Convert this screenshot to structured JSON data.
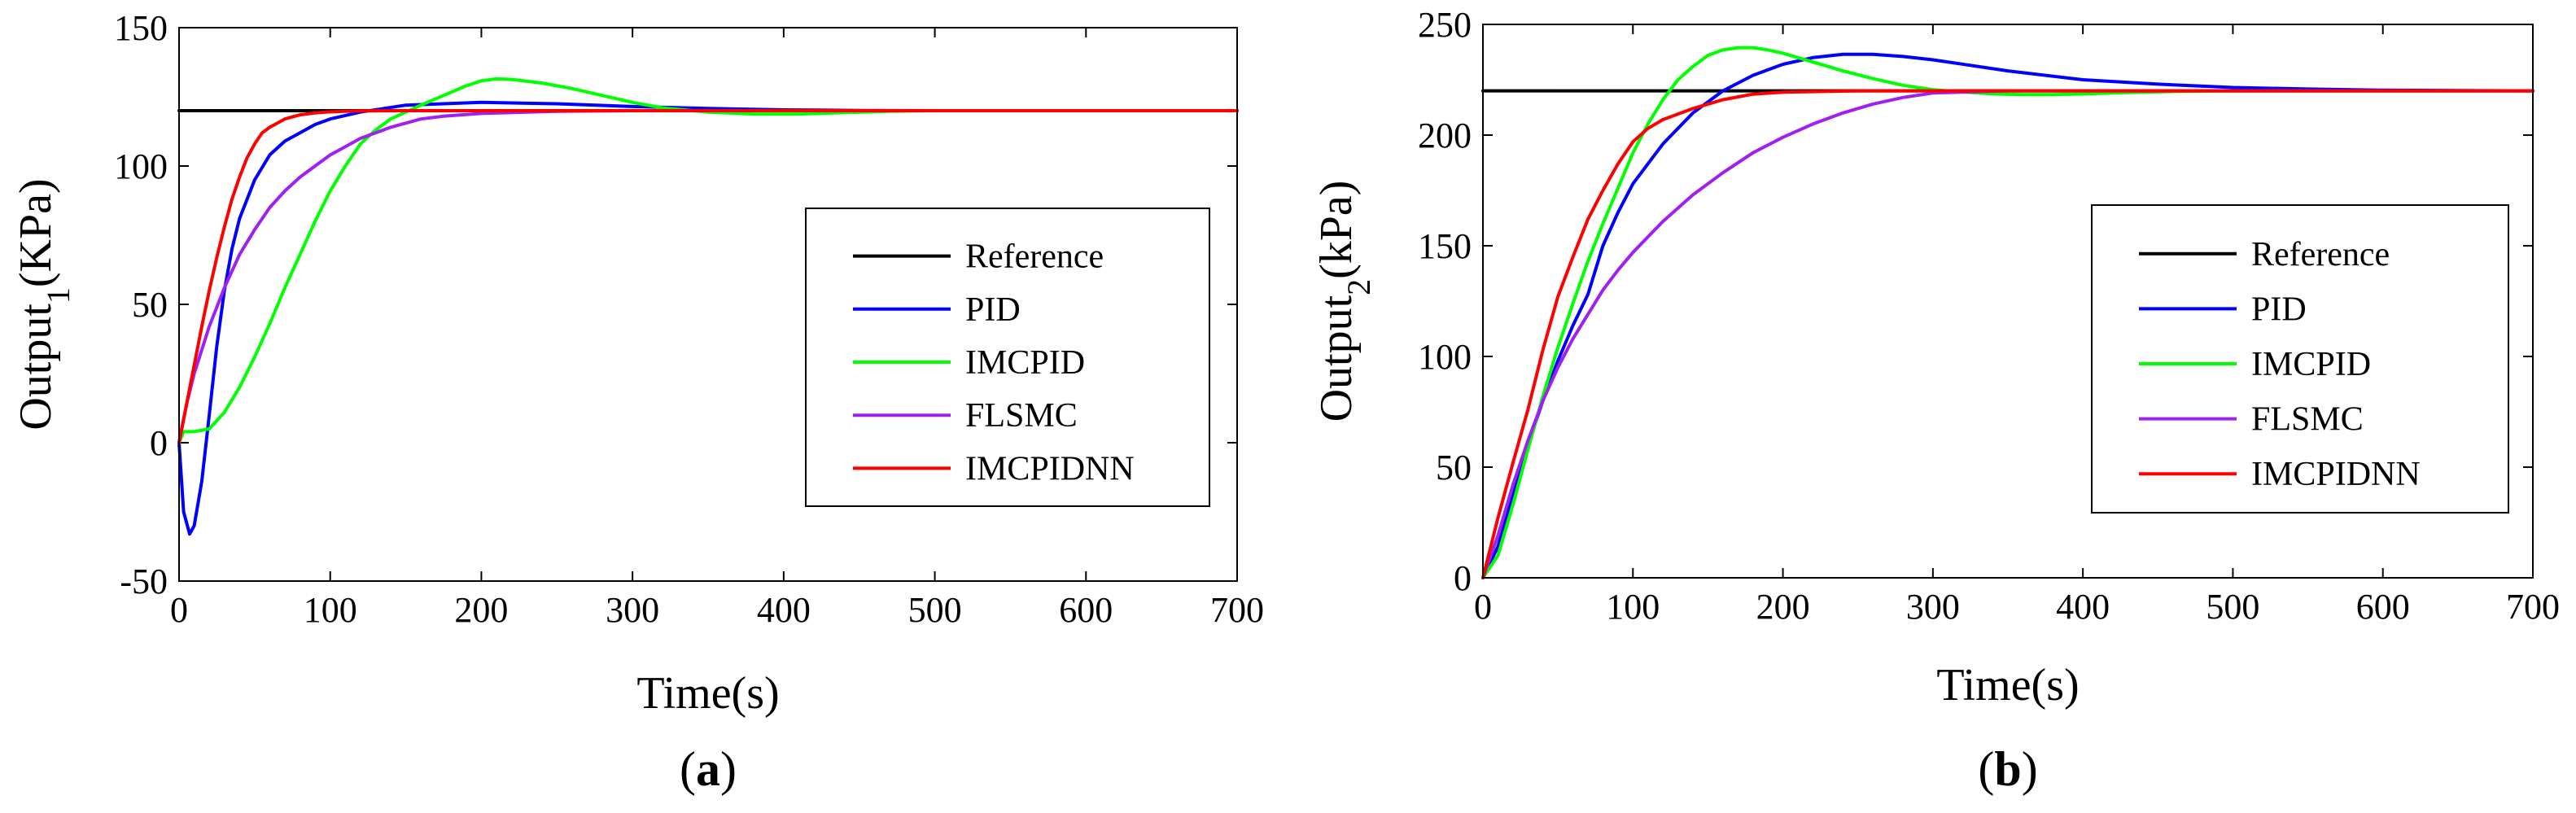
{
  "chart_data": [
    {
      "type": "line",
      "panel_label": "a",
      "caption_open": "(",
      "caption_close": ")",
      "xlabel": "Time(s)",
      "ylabel_main": "Output",
      "ylabel_sub": "1",
      "ylabel_unit": "(KPa)",
      "xlim": [
        0,
        700
      ],
      "ylim": [
        -50,
        150
      ],
      "xticks": [
        0,
        100,
        200,
        300,
        400,
        500,
        600,
        700
      ],
      "yticks": [
        -50,
        0,
        50,
        100,
        150
      ],
      "legend_position": "right",
      "series": [
        {
          "name": "Reference",
          "color": "#000000",
          "x": [
            0,
            700
          ],
          "y": [
            120,
            120
          ]
        },
        {
          "name": "PID",
          "color": "#0000ff",
          "x": [
            0,
            3,
            7,
            10,
            15,
            20,
            25,
            30,
            35,
            40,
            50,
            60,
            70,
            80,
            90,
            100,
            120,
            150,
            200,
            250,
            300,
            350,
            400,
            450,
            500,
            600,
            700
          ],
          "y": [
            0,
            -25,
            -33,
            -30,
            -14,
            10,
            35,
            55,
            70,
            81,
            95,
            104,
            109,
            112,
            115,
            117,
            119.5,
            122,
            123,
            122.5,
            121.5,
            120.8,
            120.3,
            120.1,
            120,
            120,
            120
          ]
        },
        {
          "name": "IMCPID",
          "color": "#00ff00",
          "x": [
            0,
            3,
            10,
            20,
            30,
            40,
            50,
            60,
            70,
            80,
            90,
            100,
            110,
            120,
            130,
            140,
            150,
            160,
            175,
            190,
            200,
            210,
            220,
            240,
            260,
            280,
            300,
            320,
            350,
            380,
            410,
            440,
            470,
            500,
            550,
            600,
            700
          ],
          "y": [
            0,
            4,
            4,
            5,
            11,
            20,
            31,
            43,
            56,
            68,
            80,
            91,
            100,
            108,
            113,
            117,
            119.5,
            122,
            125.5,
            129,
            130.8,
            131.5,
            131.3,
            130,
            128,
            125.5,
            123,
            121,
            119.5,
            118.8,
            118.8,
            119.3,
            119.8,
            120,
            120,
            120,
            120
          ]
        },
        {
          "name": "FLSMC",
          "color": "#a020f0",
          "x": [
            0,
            5,
            10,
            20,
            30,
            40,
            50,
            60,
            70,
            80,
            90,
            100,
            110,
            120,
            130,
            140,
            150,
            160,
            175,
            200,
            250,
            300,
            400,
            700
          ],
          "y": [
            0,
            14,
            25,
            42,
            56,
            68,
            77,
            85,
            91,
            96,
            100,
            104,
            107,
            110,
            112,
            114,
            115.5,
            117,
            118,
            119,
            119.8,
            120,
            120,
            120
          ]
        },
        {
          "name": "IMCPIDNN",
          "color": "#ff0000",
          "x": [
            0,
            5,
            10,
            15,
            20,
            25,
            30,
            35,
            40,
            45,
            50,
            55,
            60,
            70,
            80,
            90,
            100,
            110,
            120,
            150,
            700
          ],
          "y": [
            0,
            14,
            28,
            42,
            55,
            67,
            78,
            88,
            96,
            103,
            108,
            112,
            114,
            117,
            118.5,
            119.2,
            119.6,
            119.8,
            119.9,
            120,
            120
          ]
        }
      ]
    },
    {
      "type": "line",
      "panel_label": "b",
      "caption_open": "(",
      "caption_close": ")",
      "xlabel": "Time(s)",
      "ylabel_main": "Output",
      "ylabel_sub": "2",
      "ylabel_unit": "(kPa)",
      "xlim": [
        0,
        700
      ],
      "ylim": [
        0,
        250
      ],
      "xticks": [
        0,
        100,
        200,
        300,
        400,
        500,
        600,
        700
      ],
      "yticks": [
        0,
        50,
        100,
        150,
        200,
        250
      ],
      "legend_position": "right",
      "series": [
        {
          "name": "Reference",
          "color": "#000000",
          "x": [
            0,
            700
          ],
          "y": [
            220,
            220
          ]
        },
        {
          "name": "PID",
          "color": "#0000ff",
          "x": [
            0,
            10,
            20,
            30,
            40,
            50,
            60,
            70,
            80,
            90,
            100,
            120,
            140,
            160,
            180,
            200,
            220,
            240,
            260,
            280,
            300,
            350,
            400,
            450,
            500,
            550,
            600,
            650,
            700
          ],
          "y": [
            0,
            14,
            37,
            60,
            80,
            98,
            114,
            128,
            150,
            165,
            178,
            196,
            210,
            220,
            227,
            232,
            235,
            236.5,
            236.5,
            235.5,
            234,
            229,
            225,
            223,
            221.5,
            220.8,
            220.3,
            220.1,
            220
          ]
        },
        {
          "name": "IMCPID",
          "color": "#00ff00",
          "x": [
            0,
            10,
            20,
            30,
            40,
            50,
            60,
            70,
            80,
            90,
            100,
            110,
            120,
            130,
            140,
            150,
            160,
            170,
            180,
            190,
            200,
            220,
            240,
            260,
            280,
            300,
            320,
            340,
            360,
            380,
            400,
            430,
            460,
            500,
            550,
            600,
            700
          ],
          "y": [
            0,
            10,
            33,
            58,
            82,
            104,
            124,
            143,
            160,
            176,
            192,
            205,
            216,
            225,
            231,
            236,
            238.5,
            239.5,
            239.5,
            238.5,
            237,
            233,
            229,
            225.5,
            222.5,
            220.5,
            219.5,
            218.6,
            218.3,
            218.3,
            218.6,
            219.2,
            219.7,
            220,
            220,
            220,
            220
          ]
        },
        {
          "name": "FLSMC",
          "color": "#a020f0",
          "x": [
            0,
            10,
            20,
            30,
            40,
            50,
            60,
            70,
            80,
            90,
            100,
            120,
            140,
            160,
            180,
            200,
            220,
            240,
            260,
            280,
            300,
            350,
            400,
            700
          ],
          "y": [
            0,
            19,
            42,
            62,
            80,
            95,
            108,
            119,
            130,
            139,
            147,
            161,
            173,
            183,
            192,
            199,
            205,
            210,
            214,
            217,
            219,
            220,
            220,
            220
          ]
        },
        {
          "name": "IMCPIDNN",
          "color": "#ff0000",
          "x": [
            0,
            10,
            20,
            30,
            40,
            50,
            60,
            70,
            80,
            90,
            100,
            110,
            120,
            140,
            160,
            180,
            200,
            250,
            700
          ],
          "y": [
            0,
            27,
            52,
            76,
            103,
            127,
            145,
            162,
            175,
            187,
            197,
            203,
            207,
            212,
            216,
            218.5,
            219.4,
            220,
            220
          ]
        }
      ]
    }
  ]
}
